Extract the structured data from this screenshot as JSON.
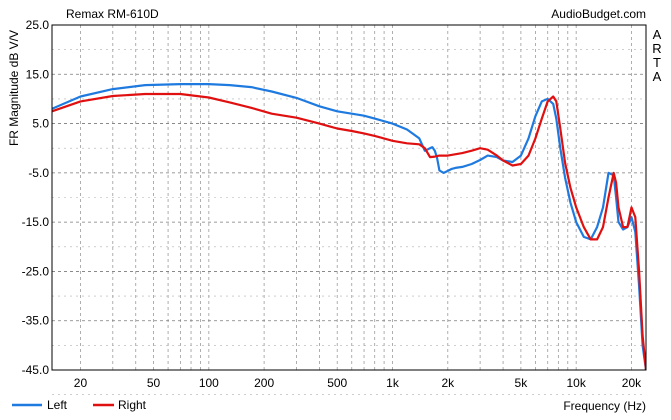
{
  "chart_data": {
    "type": "line",
    "title": "Remax RM-610D",
    "watermark": "AudioBudget.com",
    "side_label": [
      "A",
      "R",
      "T",
      "A"
    ],
    "xlabel": "Frequency (Hz)",
    "ylabel": "FR Magnitude dB V/V",
    "x_scale": "log",
    "xlim": [
      14,
      24000
    ],
    "ylim": [
      -45,
      25
    ],
    "grid": true,
    "legend_position": "bottom-left",
    "y_ticks": [
      25.0,
      15.0,
      5.0,
      -5.0,
      -15.0,
      -25.0,
      -35.0,
      -45.0
    ],
    "y_tick_labels": [
      "25.0",
      "15.0",
      "5.0",
      "-5.0",
      "-15.0",
      "-25.0",
      "-35.0",
      "-45.0"
    ],
    "x_ticks": [
      20,
      50,
      100,
      200,
      500,
      1000,
      2000,
      5000,
      10000,
      20000
    ],
    "x_tick_labels": [
      "20",
      "50",
      "100",
      "200",
      "500",
      "1k",
      "2k",
      "5k",
      "10k",
      "20k"
    ],
    "series": [
      {
        "name": "Left",
        "color": "#1f7ae0",
        "x": [
          14,
          20,
          30,
          45,
          70,
          100,
          130,
          170,
          220,
          300,
          400,
          500,
          600,
          700,
          800,
          1000,
          1200,
          1400,
          1500,
          1600,
          1650,
          1700,
          1750,
          1800,
          1900,
          2000,
          2100,
          2200,
          2400,
          2700,
          3000,
          3300,
          3700,
          4000,
          4500,
          5000,
          5500,
          6000,
          6500,
          7000,
          7500,
          7800,
          8200,
          8700,
          9300,
          10000,
          11000,
          12000,
          13000,
          14000,
          15000,
          16000,
          16500,
          17000,
          18000,
          19000,
          20000,
          21000,
          22000,
          23000,
          24000
        ],
        "y": [
          8,
          10.5,
          12,
          12.8,
          13,
          13,
          12.8,
          12.4,
          11.5,
          10.2,
          8.5,
          7.5,
          7,
          6.6,
          6,
          5,
          3.8,
          2,
          -0.5,
          0,
          0.2,
          -0.5,
          -2,
          -4.5,
          -5,
          -4.6,
          -4.2,
          -4,
          -3.8,
          -3.2,
          -2.4,
          -1.5,
          -1.8,
          -2.5,
          -2.8,
          -1.5,
          2,
          6.5,
          9.5,
          10,
          9,
          6,
          0,
          -6,
          -11,
          -15,
          -18,
          -18.5,
          -16,
          -12,
          -5,
          -5.5,
          -10,
          -15,
          -16.5,
          -16,
          -14,
          -17,
          -28,
          -40,
          -45
        ]
      },
      {
        "name": "Right",
        "color": "#e01010",
        "x": [
          14,
          20,
          30,
          45,
          70,
          100,
          130,
          170,
          220,
          300,
          400,
          500,
          600,
          700,
          800,
          1000,
          1200,
          1400,
          1500,
          1600,
          1700,
          1800,
          2000,
          2400,
          2700,
          3000,
          3300,
          3700,
          4000,
          4500,
          5000,
          5500,
          6000,
          6500,
          7000,
          7500,
          7800,
          8200,
          8700,
          9300,
          10000,
          11000,
          12000,
          13000,
          14000,
          15000,
          16000,
          16500,
          17000,
          18000,
          19000,
          20000,
          21000,
          22000,
          23000,
          24000
        ],
        "y": [
          7.5,
          9.5,
          10.6,
          11,
          11,
          10.3,
          9.3,
          8.2,
          7,
          6.2,
          5,
          4,
          3.5,
          3,
          2.5,
          1.5,
          1,
          0.8,
          0,
          -1.8,
          -1.7,
          -1.5,
          -1.5,
          -1,
          -0.5,
          0,
          -0.3,
          -1.5,
          -2.5,
          -3.5,
          -3.2,
          -1.5,
          2,
          6,
          9.5,
          10.5,
          9.5,
          4,
          -3,
          -8,
          -12,
          -16,
          -18.5,
          -18.5,
          -16,
          -10,
          -5,
          -7,
          -12,
          -16,
          -16,
          -12,
          -14,
          -25,
          -38,
          -45
        ]
      }
    ]
  }
}
